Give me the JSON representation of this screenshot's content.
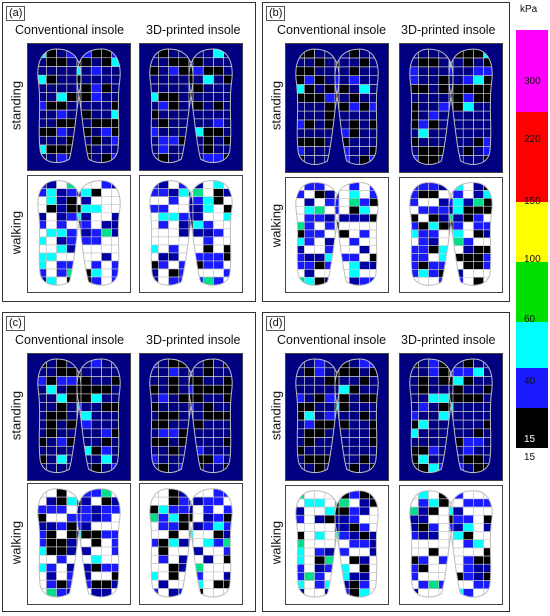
{
  "panels": [
    {
      "label": "(a)",
      "col_titles": [
        "Conventional insole",
        "3D-printed insole"
      ],
      "row_labels": [
        "standing",
        "walking"
      ]
    },
    {
      "label": "(b)",
      "col_titles": [
        "Conventional insole",
        "3D-printed insole"
      ],
      "row_labels": [
        "standing",
        "walking"
      ]
    },
    {
      "label": "(c)",
      "col_titles": [
        "Conventional insole",
        "3D-printed insole"
      ],
      "row_labels": [
        "standing",
        "walking"
      ]
    },
    {
      "label": "(d)",
      "col_titles": [
        "Conventional insole",
        "3D-printed insole"
      ],
      "row_labels": [
        "standing",
        "walking"
      ]
    }
  ],
  "color_scale": {
    "unit": "kPa",
    "ticks": [
      "300",
      "220",
      "150",
      "100",
      "60",
      "40",
      "15"
    ],
    "bottom_label": "15",
    "colors": [
      "#ff00ff",
      "#ff0000",
      "#ffff00",
      "#00e000",
      "#00ffff",
      "#1a1aff",
      "#000000"
    ]
  },
  "map_colors": {
    "standing_bg": "#000080",
    "walking_bg": "#ffffff",
    "grid": "#c8c8c8"
  }
}
